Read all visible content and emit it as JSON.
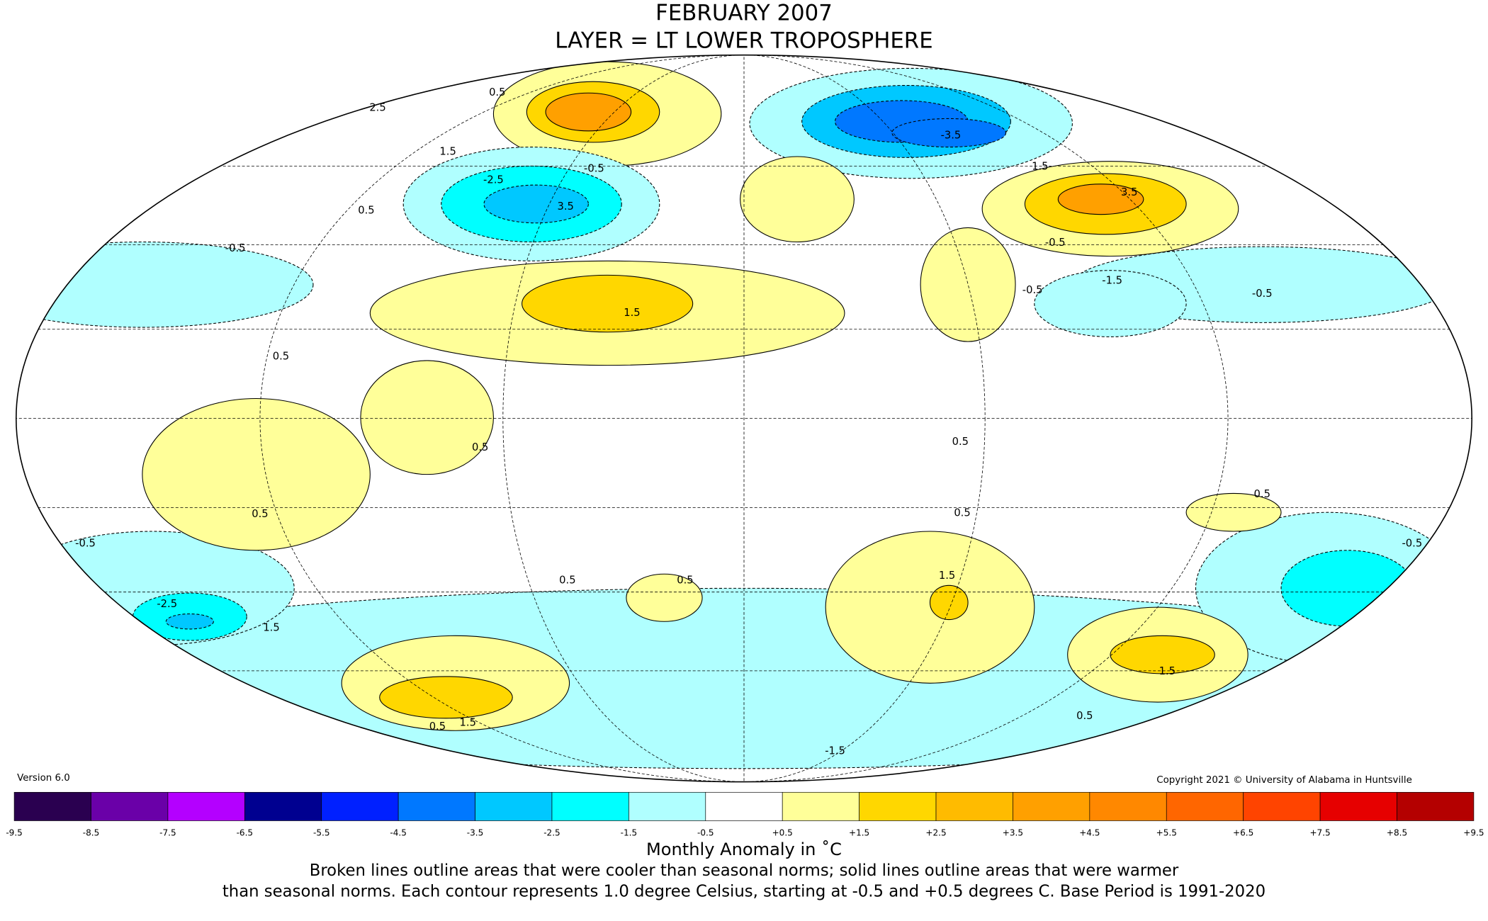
{
  "header": {
    "title": "FEBRUARY 2007",
    "subtitle": "LAYER = LT LOWER TROPOSPHERE"
  },
  "map": {
    "contour_labels": [
      "0.5",
      "2.5",
      "1.5",
      "-2.5",
      "3.5",
      "-0.5",
      "0.5",
      "-0.5",
      "1.5",
      "0.5",
      "0.5",
      "0.5",
      "-0.5",
      "-2.5",
      "1.5",
      "0.5",
      "0.5",
      "1.5",
      "0.5",
      "0.5",
      "-3.5",
      "1.5",
      "3.5",
      "-0.5",
      "-1.5",
      "-0.5",
      "0.5",
      "-0.5",
      "1.5",
      "0.5",
      "0.5",
      "1.5",
      "-1.5",
      "-0.5"
    ]
  },
  "version": "Version 6.0",
  "copyright": "Copyright 2021 © University of Alabama in Huntsville",
  "colorbar": {
    "colors": [
      "#2a0050",
      "#6a00a8",
      "#b400ff",
      "#000090",
      "#0020ff",
      "#0078ff",
      "#00c8ff",
      "#00ffff",
      "#b0ffff",
      "#ffffff",
      "#ffff99",
      "#ffd700",
      "#ffbb00",
      "#ffa000",
      "#ff8800",
      "#ff6600",
      "#ff4400",
      "#e60000",
      "#b40000"
    ],
    "ticks": [
      "-9.5",
      "-8.5",
      "-7.5",
      "-6.5",
      "-5.5",
      "-4.5",
      "-3.5",
      "-2.5",
      "-1.5",
      "-0.5",
      "+0.5",
      "+1.5",
      "+2.5",
      "+3.5",
      "+4.5",
      "+5.5",
      "+6.5",
      "+7.5",
      "+8.5",
      "+9.5"
    ],
    "label": "Monthly Anomaly in ˚C"
  },
  "caption": [
    "Broken lines outline areas that were cooler than seasonal norms; solid lines outline areas that were warmer",
    "than seasonal norms. Each contour represents 1.0 degree Celsius, starting at -0.5 and +0.5 degrees C. Base Period is 1991-2020"
  ]
}
